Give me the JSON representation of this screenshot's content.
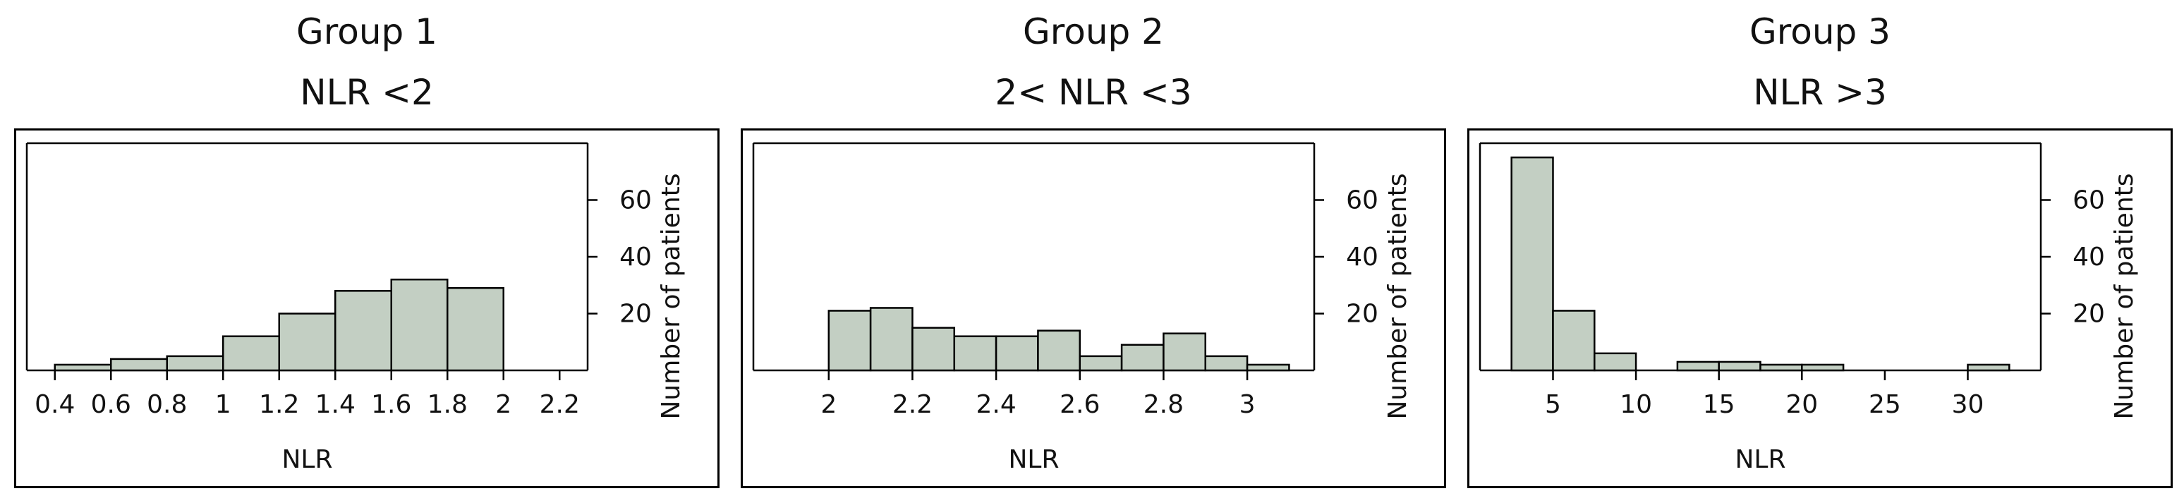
{
  "chart_data": [
    {
      "type": "bar",
      "title": "Group 1",
      "subtitle": "NLR <2",
      "xlabel": "NLR",
      "ylabel": "Number of patients",
      "xlim": [
        0.3,
        2.3
      ],
      "ylim": [
        0,
        80
      ],
      "xticks": [
        0.4,
        0.6,
        0.8,
        1,
        1.2,
        1.4,
        1.6,
        1.8,
        2,
        2.2
      ],
      "xtick_labels": [
        "0.4",
        "0.6",
        "0.8",
        "1",
        "1.2",
        "1.4",
        "1.6",
        "1.8",
        "2",
        "2.2"
      ],
      "yticks": [
        20,
        40,
        60
      ],
      "ytick_labels": [
        "20",
        "40",
        "60"
      ],
      "bins": [
        {
          "x0": 0.4,
          "x1": 0.6,
          "count": 2
        },
        {
          "x0": 0.6,
          "x1": 0.8,
          "count": 4
        },
        {
          "x0": 0.8,
          "x1": 1.0,
          "count": 5
        },
        {
          "x0": 1.0,
          "x1": 1.2,
          "count": 12
        },
        {
          "x0": 1.2,
          "x1": 1.4,
          "count": 20
        },
        {
          "x0": 1.4,
          "x1": 1.6,
          "count": 28
        },
        {
          "x0": 1.6,
          "x1": 1.8,
          "count": 32
        },
        {
          "x0": 1.8,
          "x1": 2.0,
          "count": 29
        }
      ],
      "grid": false,
      "bar_fill": "#c3cfc3",
      "bar_stroke": "#000000"
    },
    {
      "type": "bar",
      "title": "Group 2",
      "subtitle": "2< NLR <3",
      "xlabel": "NLR",
      "ylabel": "Number of patients",
      "xlim": [
        1.82,
        3.16
      ],
      "ylim": [
        0,
        80
      ],
      "xticks": [
        2,
        2.2,
        2.4,
        2.6,
        2.8,
        3
      ],
      "xtick_labels": [
        "2",
        "2.2",
        "2.4",
        "2.6",
        "2.8",
        "3"
      ],
      "yticks": [
        20,
        40,
        60
      ],
      "ytick_labels": [
        "20",
        "40",
        "60"
      ],
      "bins": [
        {
          "x0": 2.0,
          "x1": 2.1,
          "count": 21
        },
        {
          "x0": 2.1,
          "x1": 2.2,
          "count": 22
        },
        {
          "x0": 2.2,
          "x1": 2.3,
          "count": 15
        },
        {
          "x0": 2.3,
          "x1": 2.4,
          "count": 12
        },
        {
          "x0": 2.4,
          "x1": 2.5,
          "count": 12
        },
        {
          "x0": 2.5,
          "x1": 2.6,
          "count": 14
        },
        {
          "x0": 2.6,
          "x1": 2.7,
          "count": 5
        },
        {
          "x0": 2.7,
          "x1": 2.8,
          "count": 9
        },
        {
          "x0": 2.8,
          "x1": 2.9,
          "count": 13
        },
        {
          "x0": 2.9,
          "x1": 3.0,
          "count": 5
        },
        {
          "x0": 3.0,
          "x1": 3.1,
          "count": 2
        }
      ],
      "grid": false,
      "bar_fill": "#c3cfc3",
      "bar_stroke": "#000000"
    },
    {
      "type": "bar",
      "title": "Group 3",
      "subtitle": "NLR >3",
      "xlabel": "NLR",
      "ylabel": "Number of patients",
      "xlim": [
        0.6,
        34.4
      ],
      "ylim": [
        0,
        80
      ],
      "xticks": [
        5,
        10,
        15,
        20,
        25,
        30
      ],
      "xtick_labels": [
        "5",
        "10",
        "15",
        "20",
        "25",
        "30"
      ],
      "yticks": [
        20,
        40,
        60
      ],
      "ytick_labels": [
        "20",
        "40",
        "60"
      ],
      "bins": [
        {
          "x0": 2.5,
          "x1": 5,
          "count": 75
        },
        {
          "x0": 5,
          "x1": 7.5,
          "count": 21
        },
        {
          "x0": 7.5,
          "x1": 10,
          "count": 6
        },
        {
          "x0": 10,
          "x1": 12.5,
          "count": 0
        },
        {
          "x0": 12.5,
          "x1": 15,
          "count": 3
        },
        {
          "x0": 15,
          "x1": 17.5,
          "count": 3
        },
        {
          "x0": 17.5,
          "x1": 20,
          "count": 2
        },
        {
          "x0": 20,
          "x1": 22.5,
          "count": 2
        },
        {
          "x0": 22.5,
          "x1": 25,
          "count": 0
        },
        {
          "x0": 25,
          "x1": 27.5,
          "count": 0
        },
        {
          "x0": 27.5,
          "x1": 30,
          "count": 0
        },
        {
          "x0": 30,
          "x1": 32.5,
          "count": 2
        }
      ],
      "grid": false,
      "bar_fill": "#c3cfc3",
      "bar_stroke": "#000000"
    }
  ]
}
